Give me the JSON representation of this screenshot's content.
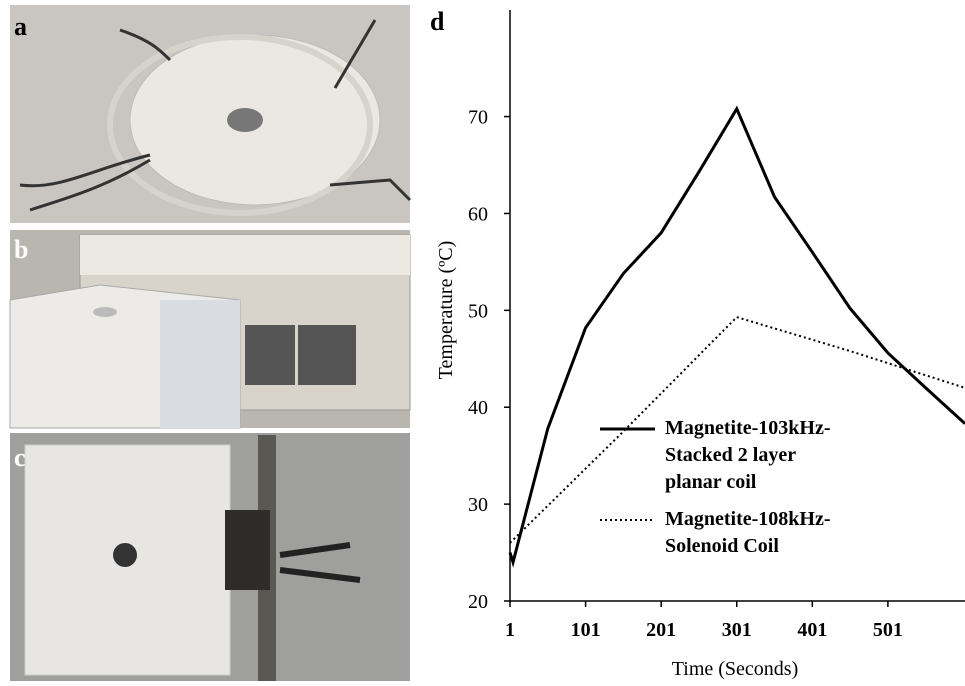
{
  "panels": [
    {
      "label": "a"
    },
    {
      "label": "b"
    },
    {
      "label": "c"
    }
  ],
  "chart_data": {
    "type": "line",
    "panel_label": "d",
    "x_label": "Time (Seconds)",
    "y_label": "Temperature (ºC)",
    "xlim": [
      1,
      603
    ],
    "ylim": [
      20,
      81
    ],
    "xticks": [
      1,
      101,
      201,
      301,
      401,
      501
    ],
    "yticks": [
      20,
      30,
      40,
      50,
      60,
      70
    ],
    "series": [
      {
        "name": "Magnetite-103kHz-Stacked 2 layer planar coil",
        "color": "#000000",
        "style": "solid",
        "x": [
          1,
          5,
          51,
          101,
          151,
          201,
          251,
          301,
          351,
          401,
          451,
          501,
          551,
          603
        ],
        "values": [
          25,
          24,
          37.8,
          48.2,
          53.8,
          58,
          64.3,
          70.8,
          61.7,
          56,
          50.2,
          45.6,
          42,
          38.3
        ]
      },
      {
        "name": "Magnetite-108kHz-Solenoid Coil",
        "color": "#000000",
        "style": "dotted",
        "x": [
          1,
          151,
          301,
          451,
          603
        ],
        "values": [
          26,
          37.5,
          49.3,
          45.8,
          42
        ]
      }
    ]
  }
}
